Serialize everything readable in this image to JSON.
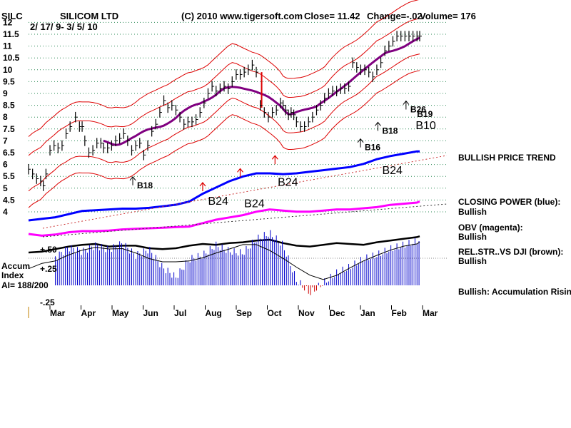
{
  "chart_data": {
    "type": "line",
    "header": {
      "ticker": "SILC",
      "name": "SILICOM LTD",
      "copyright": "(C) 2010 www.tigersoft.com",
      "close": "Close=  11.42",
      "change": "Change=-.02",
      "volume": "Volume= 176",
      "date_range": "2/ 17/ 9- 3/ 5/ 10"
    },
    "price_axis": {
      "ticks": [
        4,
        4.5,
        5,
        5.5,
        6,
        6.5,
        7,
        7.5,
        8,
        8.5,
        9,
        9.5,
        10,
        10.5,
        11,
        11.5,
        12
      ],
      "tick_labels": [
        "4",
        "4.5",
        "5",
        "5.5",
        "6",
        "6.5",
        "7",
        "7.5",
        "8",
        "8.5",
        "9",
        "9.5",
        "10",
        "10.5",
        "11",
        "11.5",
        "12"
      ],
      "grid": true
    },
    "accum_axis": {
      "tick_labels": [
        "+.50",
        "+.25",
        "-.25"
      ],
      "title_lines": [
        "Accum",
        "Index",
        "AI= 188/200"
      ]
    },
    "x_axis": {
      "months": [
        "Mar",
        "Apr",
        "May",
        "Jun",
        "Jul",
        "Aug",
        "Sep",
        "Oct",
        "Nov",
        "Dec",
        "Jan",
        "Feb",
        "Mar"
      ]
    },
    "series": [
      {
        "name": "price",
        "color": "#000000",
        "x": [
          0,
          6,
          12,
          18,
          22,
          26,
          32,
          38,
          44,
          50,
          56,
          62,
          70,
          76,
          80,
          84,
          90,
          96,
          102,
          108,
          112,
          118,
          124,
          130,
          136,
          142,
          148,
          154,
          160,
          166,
          172,
          178,
          184,
          190,
          196,
          202,
          208,
          214,
          220,
          226,
          232,
          238,
          244,
          250,
          256,
          262,
          268,
          274,
          280,
          286,
          292,
          298,
          304,
          310,
          316,
          322,
          328,
          334,
          340,
          346,
          352,
          358,
          364,
          370,
          376,
          380,
          384,
          388,
          392,
          396,
          400,
          406,
          412,
          418,
          424,
          430,
          436,
          442,
          448,
          454,
          460,
          466,
          472,
          478,
          484,
          490,
          496,
          502,
          508,
          514,
          520,
          526,
          532,
          538,
          544,
          550,
          556,
          562,
          568,
          574,
          580,
          584
        ],
        "y": [
          5.8,
          5.6,
          5.4,
          5.3,
          5.1,
          5.6,
          6.6,
          6.8,
          6.7,
          6.8,
          7.3,
          7.6,
          8.0,
          7.6,
          7.6,
          7.0,
          6.5,
          6.6,
          6.9,
          6.9,
          6.7,
          6.7,
          6.8,
          7.0,
          7.1,
          7.3,
          7.0,
          6.6,
          6.8,
          6.9,
          6.4,
          6.8,
          7.4,
          7.7,
          8.2,
          8.7,
          8.4,
          8.5,
          8.3,
          8.0,
          7.7,
          7.8,
          7.8,
          7.9,
          8.2,
          8.6,
          9.0,
          9.3,
          9.1,
          9.2,
          9.3,
          9.2,
          9.5,
          9.8,
          9.8,
          9.9,
          10.0,
          10.2,
          9.9,
          8.5,
          8.2,
          8.0,
          8.2,
          8.3,
          8.6,
          8.5,
          8.3,
          8.1,
          8.2,
          8.1,
          7.8,
          7.6,
          7.6,
          7.8,
          8.0,
          8.3,
          8.5,
          8.8,
          9.0,
          9.1,
          9.1,
          9.2,
          9.2,
          9.3,
          10.3,
          10.1,
          10.0,
          10.0,
          9.9,
          9.7,
          10.0,
          10.3,
          10.8,
          11.0,
          11.2,
          11.42,
          11.42,
          11.42,
          11.42,
          11.42,
          11.42,
          11.42
        ]
      },
      {
        "name": "closing-power",
        "color": "#0000ff",
        "x": [
          0,
          20,
          40,
          60,
          80,
          100,
          120,
          140,
          160,
          180,
          200,
          220,
          240,
          260,
          280,
          300,
          320,
          340,
          360,
          380,
          400,
          420,
          440,
          460,
          480,
          500,
          520,
          540,
          560,
          580,
          584
        ],
        "y": [
          0.1,
          0.12,
          0.14,
          0.18,
          0.22,
          0.23,
          0.24,
          0.25,
          0.25,
          0.26,
          0.28,
          0.3,
          0.34,
          0.44,
          0.52,
          0.6,
          0.66,
          0.7,
          0.7,
          0.69,
          0.7,
          0.72,
          0.74,
          0.76,
          0.78,
          0.82,
          0.88,
          0.92,
          0.95,
          0.98,
          0.98
        ]
      },
      {
        "name": "obv",
        "color": "#ff00ff",
        "x": [
          0,
          20,
          40,
          60,
          80,
          100,
          120,
          140,
          160,
          180,
          200,
          220,
          240,
          260,
          280,
          300,
          320,
          340,
          360,
          380,
          400,
          420,
          440,
          460,
          480,
          500,
          520,
          540,
          560,
          580,
          584
        ],
        "y": [
          0.05,
          0.02,
          0.04,
          0.08,
          0.1,
          0.1,
          0.11,
          0.13,
          0.14,
          0.15,
          0.16,
          0.17,
          0.18,
          0.24,
          0.3,
          0.34,
          0.38,
          0.44,
          0.48,
          0.46,
          0.44,
          0.44,
          0.46,
          0.48,
          0.48,
          0.5,
          0.52,
          0.56,
          0.58,
          0.6,
          0.62
        ]
      },
      {
        "name": "rel-strength",
        "color": "#000000",
        "x": [
          0,
          20,
          40,
          60,
          80,
          100,
          120,
          140,
          160,
          180,
          200,
          220,
          240,
          260,
          280,
          300,
          320,
          340,
          360,
          380,
          400,
          420,
          440,
          460,
          480,
          500,
          520,
          540,
          560,
          580,
          584
        ],
        "y": [
          0.3,
          0.32,
          0.38,
          0.44,
          0.48,
          0.5,
          0.44,
          0.46,
          0.46,
          0.4,
          0.38,
          0.4,
          0.46,
          0.5,
          0.48,
          0.52,
          0.54,
          0.58,
          0.6,
          0.52,
          0.46,
          0.44,
          0.48,
          0.52,
          0.5,
          0.48,
          0.54,
          0.58,
          0.62,
          0.66,
          0.68
        ]
      },
      {
        "name": "accumulation",
        "color": "#0000cc",
        "x": [
          0,
          20,
          40,
          60,
          80,
          100,
          120,
          140,
          160,
          180,
          200,
          220,
          240,
          260,
          280,
          300,
          320,
          340,
          360,
          380,
          400,
          420,
          440,
          460,
          480,
          500,
          520,
          540,
          560,
          580,
          584
        ],
        "y": [
          0.1,
          0.12,
          0.28,
          0.38,
          0.34,
          0.4,
          0.36,
          0.42,
          0.3,
          0.36,
          0.18,
          0.08,
          0.26,
          0.3,
          0.4,
          0.34,
          0.32,
          0.46,
          0.52,
          0.4,
          0.05,
          -0.08,
          0.02,
          0.12,
          0.18,
          0.26,
          0.3,
          0.36,
          0.4,
          0.44,
          0.46
        ]
      }
    ],
    "signals": [
      {
        "label": "B18",
        "x": 162,
        "y": 5.0,
        "size": "small",
        "arrow_up": true
      },
      {
        "label": "B24",
        "x": 268,
        "y": 4.3,
        "size": "big",
        "arrow_up": false
      },
      {
        "label": "B24",
        "x": 322,
        "y": 4.2,
        "size": "big",
        "arrow_up": false
      },
      {
        "label": "B24",
        "x": 372,
        "y": 5.1,
        "size": "big",
        "arrow_up": false
      },
      {
        "label": "B16",
        "x": 502,
        "y": 6.6,
        "size": "small",
        "arrow_up": true
      },
      {
        "label": "B18",
        "x": 528,
        "y": 7.3,
        "size": "small",
        "arrow_up": true
      },
      {
        "label": "B24",
        "x": 528,
        "y": 5.6,
        "size": "big",
        "arrow_up": false
      },
      {
        "label": "B26",
        "x": 570,
        "y": 8.2,
        "size": "small",
        "arrow_up": true
      },
      {
        "label": "B19",
        "x": 580,
        "y": 8.0,
        "size": "small",
        "arrow_up": false
      },
      {
        "label": "B10",
        "x": 578,
        "y": 7.5,
        "size": "big",
        "arrow_up": false
      }
    ],
    "red_arrows_x": [
      260,
      316,
      368
    ],
    "indicators": [
      {
        "title": "BULLISH PRICE TREND",
        "status": ""
      },
      {
        "title": "CLOSING POWER (blue):",
        "status": "Bullish"
      },
      {
        "title": "OBV (magenta):",
        "status": "Bullish"
      },
      {
        "title": "REL.STR..VS DJI (brown):",
        "status": "Bullish"
      },
      {
        "title": "Bullish: Accumulation Rising",
        "status": ""
      }
    ],
    "colors": {
      "bands": "#dd0000",
      "ma": "#800080",
      "grid": "#2e8b57",
      "closing_power": "#0000ff",
      "obv": "#ff00ff",
      "accum_pos": "#0000cc",
      "accum_neg": "#cc0000"
    }
  }
}
